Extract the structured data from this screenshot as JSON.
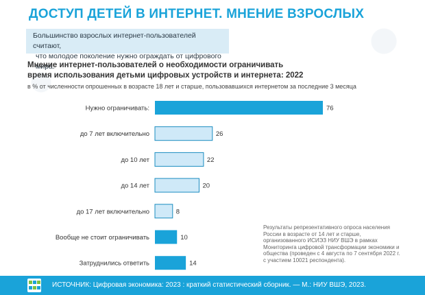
{
  "header": {
    "title": "ДОСТУП ДЕТЕЙ В ИНТЕРНЕТ. МНЕНИЕ ВЗРОСЛЫХ",
    "callout_line1": "Большинство взрослых интернет-пользователей считают,",
    "callout_line2": "что молодое поколение нужно ограждать от цифрового мира."
  },
  "chart_data": {
    "type": "bar",
    "orientation": "horizontal",
    "title_line1": "Мнение интернет-пользователей о необходимости ограничивать",
    "title_line2": "время использования детьми цифровых устройств и интернета: 2022",
    "subtitle": "в % от численности опрошенных в возрасте 18 лет и старше, пользовавшихся интернетом за последние 3 месяца",
    "categories": [
      "Нужно ограничивать:",
      "до 7 лет включительно",
      "до 10 лет",
      "до 14 лет",
      "до 17 лет включительно",
      "Вообще не стоит ограничивать",
      "Затруднились ответить"
    ],
    "values": [
      76,
      26,
      22,
      20,
      8,
      10,
      14
    ],
    "bar_style": [
      "dark",
      "light",
      "light",
      "light",
      "light",
      "dark",
      "dark"
    ],
    "colors": {
      "dark": "#1aa3d9",
      "light": "#cfe9f8",
      "light_border": "#1a8cc0"
    },
    "xlim": [
      0,
      76
    ],
    "grid": false,
    "legend": "none"
  },
  "note": "Результаты репрезентативного опроса населения России в возрасте от 14 лет и старше, организованного ИСИЭЗ НИУ ВШЭ в рамках Мониторинга цифровой трансформации экономики и общества (проведен с 4 августа по 7 сентября 2022 г. с участием 10021 респондента).",
  "footer": {
    "source": "ИСТОЧНИК: Цифровая экономика: 2023 : краткий статистический сборник. — М.: НИУ ВШЭ, 2023.",
    "logo_icon": "hse-logo-icon",
    "bar_color": "#1aa3d9"
  }
}
